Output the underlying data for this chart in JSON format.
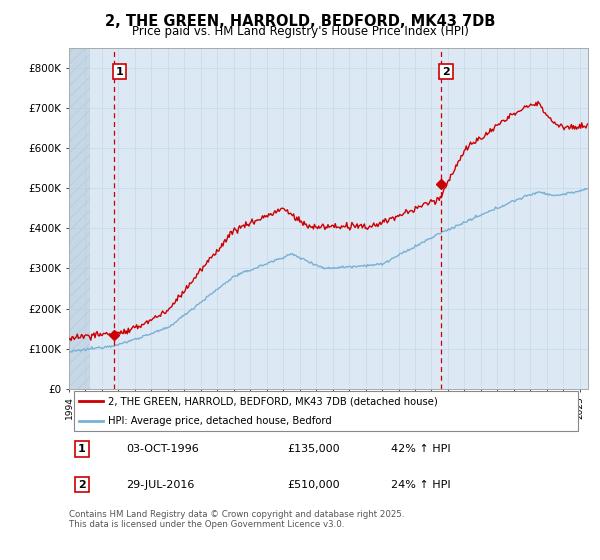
{
  "title_line1": "2, THE GREEN, HARROLD, BEDFORD, MK43 7DB",
  "title_line2": "Price paid vs. HM Land Registry's House Price Index (HPI)",
  "sale1_date": "03-OCT-1996",
  "sale1_price": 135000,
  "sale1_price_str": "£135,000",
  "sale1_hpi_pct": "42% ↑ HPI",
  "sale2_date": "29-JUL-2016",
  "sale2_price": 510000,
  "sale2_price_str": "£510,000",
  "sale2_hpi_pct": "24% ↑ HPI",
  "legend_line1": "2, THE GREEN, HARROLD, BEDFORD, MK43 7DB (detached house)",
  "legend_line2": "HPI: Average price, detached house, Bedford",
  "footnote": "Contains HM Land Registry data © Crown copyright and database right 2025.\nThis data is licensed under the Open Government Licence v3.0.",
  "red_color": "#cc0000",
  "blue_color": "#7ab0d4",
  "vline_color": "#cc0000",
  "grid_color": "#c8daea",
  "plot_bg": "#dce9f5",
  "hatch_color": "#b8ccdc",
  "ylim_max": 850000,
  "ylabel_ticks": [
    0,
    100000,
    200000,
    300000,
    400000,
    500000,
    600000,
    700000,
    800000
  ],
  "ylabel_labels": [
    "£0",
    "£100K",
    "£200K",
    "£300K",
    "£400K",
    "£500K",
    "£600K",
    "£700K",
    "£800K"
  ],
  "sale1_x": 1996.75,
  "sale2_x": 2016.55,
  "xmin": 1994,
  "xmax": 2025.5
}
